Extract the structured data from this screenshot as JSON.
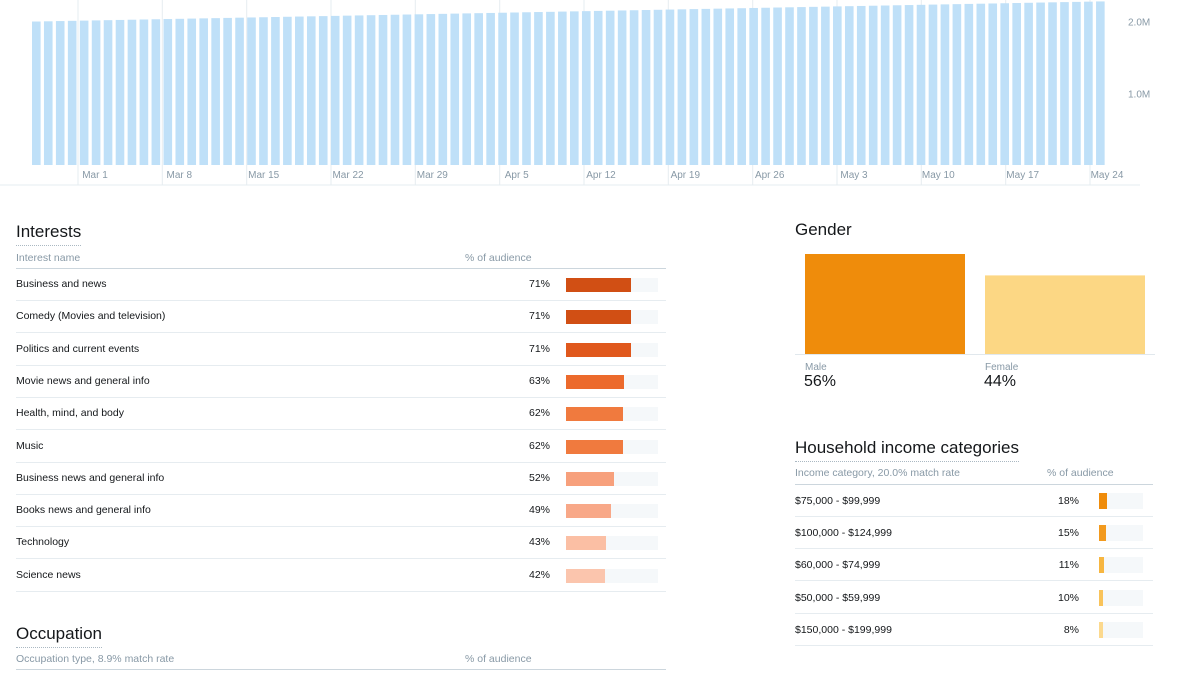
{
  "top_chart": {
    "chart_data": {
      "type": "bar",
      "x_tick_labels": [
        "Mar 1",
        "Mar 8",
        "Mar 15",
        "Mar 22",
        "Mar 29",
        "Apr 5",
        "Apr 12",
        "Apr 19",
        "Apr 26",
        "May 3",
        "May 10",
        "May 17",
        "May 24"
      ],
      "y_tick_labels": [
        "2.0M",
        "1.0M"
      ],
      "y_ticks": [
        2000000,
        1000000
      ],
      "ylim": [
        0,
        2300000
      ],
      "start_value": 2000000,
      "end_value": 2280000,
      "bar_count": 90,
      "bar_color": "#bfe0f8",
      "grid": true
    }
  },
  "interests": {
    "title": "Interests",
    "col_name": "Interest name",
    "col_pct": "% of audience",
    "rows": [
      {
        "name": "Business and news",
        "pct": "71%",
        "value": 71,
        "color": "#d14f14"
      },
      {
        "name": "Comedy (Movies and television)",
        "pct": "71%",
        "value": 71,
        "color": "#d14f14"
      },
      {
        "name": "Politics and current events",
        "pct": "71%",
        "value": 71,
        "color": "#e0581c"
      },
      {
        "name": "Movie news and general info",
        "pct": "63%",
        "value": 63,
        "color": "#ec6a2c"
      },
      {
        "name": "Health, mind, and body",
        "pct": "62%",
        "value": 62,
        "color": "#f07a3e"
      },
      {
        "name": "Music",
        "pct": "62%",
        "value": 62,
        "color": "#f07a3e"
      },
      {
        "name": "Business news and general info",
        "pct": "52%",
        "value": 52,
        "color": "#f7a07c"
      },
      {
        "name": "Books news and general info",
        "pct": "49%",
        "value": 49,
        "color": "#f8a888"
      },
      {
        "name": "Technology",
        "pct": "43%",
        "value": 43,
        "color": "#fbbfa4"
      },
      {
        "name": "Science news",
        "pct": "42%",
        "value": 42,
        "color": "#fbc5ad"
      }
    ]
  },
  "occupation": {
    "title": "Occupation",
    "col_name": "Occupation type, 8.9% match rate",
    "col_pct": "% of audience"
  },
  "gender": {
    "title": "Gender",
    "chart_data": {
      "type": "bar",
      "categories": [
        "Male",
        "Female"
      ],
      "values": [
        56,
        44
      ],
      "colors": [
        "#ef8c0b",
        "#fcd784"
      ]
    },
    "male_label": "Male",
    "male_value": "56%",
    "female_label": "Female",
    "female_value": "44%"
  },
  "income": {
    "title": "Household income categories",
    "col_name": "Income category, 20.0% match rate",
    "col_pct": "% of audience",
    "rows": [
      {
        "name": "$75,000 - $99,999",
        "pct": "18%",
        "value": 18,
        "color": "#ef8c0b"
      },
      {
        "name": "$100,000 - $124,999",
        "pct": "15%",
        "value": 15,
        "color": "#f29a1e"
      },
      {
        "name": "$60,000 - $74,999",
        "pct": "11%",
        "value": 11,
        "color": "#f7b640"
      },
      {
        "name": "$50,000 - $59,999",
        "pct": "10%",
        "value": 10,
        "color": "#f9c35a"
      },
      {
        "name": "$150,000 - $199,999",
        "pct": "8%",
        "value": 8,
        "color": "#fcd98e"
      }
    ]
  }
}
